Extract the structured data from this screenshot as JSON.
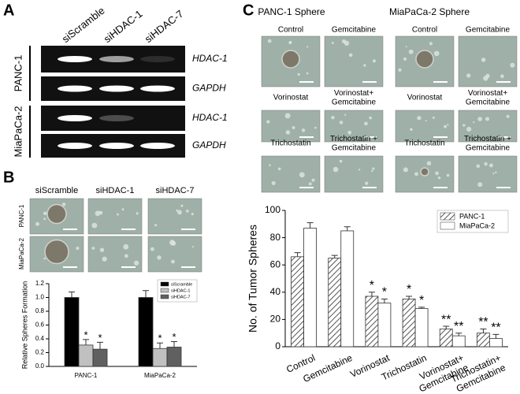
{
  "panel_a": {
    "label": "A",
    "columns": [
      "siScramble",
      "siHDAC-1",
      "siHDAC-7"
    ],
    "rows": [
      {
        "cell_line": "PANC-1",
        "genes": [
          "HDAC-1",
          "GAPDH"
        ]
      },
      {
        "cell_line": "MiaPaCa-2",
        "genes": [
          "HDAC-1",
          "GAPDH"
        ]
      }
    ]
  },
  "panel_b": {
    "label": "B",
    "columns": [
      "siScramble",
      "siHDAC-1",
      "siHDAC-7"
    ],
    "rows": [
      "PANC-1",
      "MiaPaCa-2"
    ]
  },
  "panel_c": {
    "label": "C",
    "groups": [
      "PANC-1 Sphere",
      "MiaPaCa-2 Sphere"
    ],
    "treatments": [
      "Control",
      "Gemcitabine",
      "Vorinostat",
      "Vorinostat+\nGemcitabine",
      "Trichostatin",
      "Trichostatin +\nGemcitabine"
    ]
  },
  "chart_data": [
    {
      "type": "bar",
      "y_label": "Relative Spheres Formation",
      "categories": [
        "PANC-1",
        "MiaPaCa-2"
      ],
      "series": [
        {
          "name": "siScramble",
          "color": "#000000",
          "values": [
            1.0,
            1.0
          ],
          "errors": [
            0.08,
            0.1
          ]
        },
        {
          "name": "siHDAC-1",
          "color": "#c0c0c0",
          "values": [
            0.31,
            0.26
          ],
          "errors": [
            0.08,
            0.08
          ],
          "significance": [
            "*",
            "*"
          ]
        },
        {
          "name": "siHDAC-7",
          "color": "#606060",
          "values": [
            0.25,
            0.28
          ],
          "errors": [
            0.1,
            0.08
          ],
          "significance": [
            "*",
            "*"
          ]
        }
      ],
      "ylim": [
        0,
        1.2
      ],
      "yticks": [
        {
          "value": 0,
          "label": "0.0"
        },
        {
          "value": 0.2,
          "label": "0.2"
        },
        {
          "value": 0.4,
          "label": "0.4"
        },
        {
          "value": 0.6,
          "label": "0.6"
        },
        {
          "value": 0.8,
          "label": "0.8"
        },
        {
          "value": 1.0,
          "label": "1.0"
        },
        {
          "value": 1.2,
          "label": "1.2"
        }
      ],
      "legend": "top-right"
    },
    {
      "type": "bar",
      "y_label": "No. of Tumor Spheres",
      "categories": [
        "Control",
        "Gemcitabine",
        "Vorinostat",
        "Trichostatin",
        "Vorinostat+\nGemcitabine",
        "Trichostatin+\nGemcitabine"
      ],
      "series": [
        {
          "name": "PANC-1",
          "color": "#777777",
          "hatch": true,
          "values": [
            66,
            65,
            37,
            35,
            13,
            10
          ],
          "errors": [
            3,
            2,
            3,
            2,
            2,
            3
          ],
          "significance": [
            null,
            null,
            "*",
            "*",
            "**",
            "**"
          ]
        },
        {
          "name": "MiaPaCa-2",
          "color": "#ffffff",
          "values": [
            87,
            85,
            32,
            28,
            8,
            6
          ],
          "errors": [
            4,
            3,
            3,
            1,
            2,
            3
          ],
          "significance": [
            null,
            null,
            "*",
            "*",
            "**",
            "**"
          ]
        }
      ],
      "ylim": [
        0,
        100
      ],
      "yticks": [
        0,
        20,
        40,
        60,
        80,
        100
      ],
      "legend": "top-right"
    }
  ]
}
